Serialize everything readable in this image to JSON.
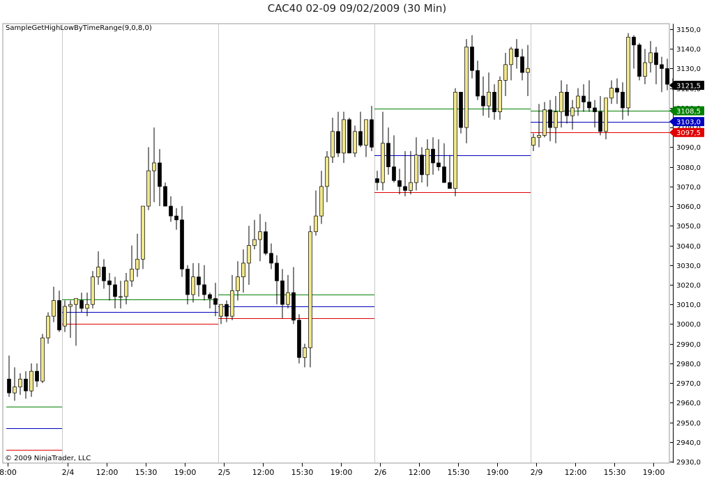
{
  "chart_data": {
    "type": "candlestick",
    "title": "CAC40 02-09  09/02/2009 (30 Min)",
    "indicator_label": "SampleGetHighLowByTimeRange(9,0,8,0)",
    "copyright": "© 2009 NinjaTrader, LLC",
    "ylim": [
      2930,
      3150
    ],
    "y_ticks": [
      "2930,0",
      "2940,0",
      "2950,0",
      "2960,0",
      "2970,0",
      "2980,0",
      "2990,0",
      "3000,0",
      "3010,0",
      "3020,0",
      "3030,0",
      "3040,0",
      "3050,0",
      "3060,0",
      "3070,0",
      "3080,0",
      "3090,0",
      "3100,0",
      "3110,0",
      "3120,0",
      "3130,0",
      "3140,0",
      "3150,0"
    ],
    "x_ticks": [
      {
        "bar": -0.2,
        "label": "8:00"
      },
      {
        "bar": 10.5,
        "label": "2/4"
      },
      {
        "bar": 17.5,
        "label": "12:00"
      },
      {
        "bar": 24.5,
        "label": "15:30"
      },
      {
        "bar": 31.5,
        "label": "19:00"
      },
      {
        "bar": 38.5,
        "label": "2/5"
      },
      {
        "bar": 45.5,
        "label": "12:00"
      },
      {
        "bar": 52.5,
        "label": "15:30"
      },
      {
        "bar": 59.5,
        "label": "19:00"
      },
      {
        "bar": 66.5,
        "label": "2/6"
      },
      {
        "bar": 73.5,
        "label": "12:00"
      },
      {
        "bar": 80.5,
        "label": "15:30"
      },
      {
        "bar": 87.5,
        "label": "19:00"
      },
      {
        "bar": 94.5,
        "label": "2/9"
      },
      {
        "bar": 101.5,
        "label": "12:00"
      },
      {
        "bar": 108.5,
        "label": "15:30"
      },
      {
        "bar": 115.5,
        "label": "19:00"
      }
    ],
    "session_separators": [
      10,
      38,
      66,
      94
    ],
    "price_markers": [
      {
        "label": "3121,5",
        "value": 3121.5,
        "color": "#000000"
      },
      {
        "label": "3108,5",
        "value": 3108.5,
        "color": "#008000"
      },
      {
        "label": "3103,0",
        "value": 3103.0,
        "color": "#0000c0"
      },
      {
        "label": "3097,5",
        "value": 3097.5,
        "color": "#e00000"
      }
    ],
    "range_lines": [
      {
        "from": 0,
        "to": 9,
        "high": 2958,
        "mid": 2947,
        "low": 2936
      },
      {
        "from": 10,
        "to": 37,
        "high": 3012.5,
        "mid": 3006,
        "low": 3000
      },
      {
        "from": 38,
        "to": 65,
        "high": 3015,
        "mid": 3009,
        "low": 3003
      },
      {
        "from": 66,
        "to": 93,
        "high": 3109.5,
        "mid": 3086,
        "low": 3067
      },
      {
        "from": 94,
        "to": 118,
        "high": 3108.5,
        "mid": 3103,
        "low": 3097.5
      }
    ],
    "colors": {
      "up_body": "#f0e68c",
      "down_body": "#000000",
      "wick": "#000000",
      "grid": "#c8c8c8"
    },
    "bars": [
      [
        2972,
        2984,
        2963,
        2965
      ],
      [
        2965,
        2978,
        2961,
        2968
      ],
      [
        2968,
        2975,
        2964,
        2972
      ],
      [
        2972,
        2976,
        2962,
        2966
      ],
      [
        2966,
        2980,
        2963,
        2976
      ],
      [
        2976,
        2980,
        2968,
        2971
      ],
      [
        2971,
        2995,
        2970,
        2993
      ],
      [
        2993,
        3006,
        2990,
        3004
      ],
      [
        3004,
        3019,
        3001,
        3012
      ],
      [
        3012,
        3017,
        2996,
        2997
      ],
      [
        2999,
        3012,
        2996,
        3009
      ],
      [
        3009,
        3012,
        2993,
        3010
      ],
      [
        3010,
        3013,
        2989,
        3013
      ],
      [
        3012,
        3016,
        3006,
        3008
      ],
      [
        3008,
        3016,
        3004,
        3010
      ],
      [
        3010,
        3027,
        3008,
        3024
      ],
      [
        3024,
        3037,
        3020,
        3029
      ],
      [
        3029,
        3033,
        3018,
        3022
      ],
      [
        3022,
        3026,
        3012,
        3020
      ],
      [
        3020,
        3024,
        3008,
        3014
      ],
      [
        3014,
        3022,
        3008,
        3014
      ],
      [
        3014,
        3026,
        3010,
        3022
      ],
      [
        3022,
        3040,
        3019,
        3028
      ],
      [
        3028,
        3046,
        3024,
        3033
      ],
      [
        3033,
        3059,
        3028,
        3060
      ],
      [
        3060,
        3090,
        3058,
        3078
      ],
      [
        3078,
        3100,
        3062,
        3082
      ],
      [
        3082,
        3089,
        3060,
        3070
      ],
      [
        3070,
        3072,
        3060,
        3060
      ],
      [
        3060,
        3065,
        3052,
        3055
      ],
      [
        3055,
        3059,
        3048,
        3053
      ],
      [
        3053,
        3060,
        3024,
        3028
      ],
      [
        3028,
        3030,
        3010,
        3015
      ],
      [
        3015,
        3031,
        3011,
        3024
      ],
      [
        3024,
        3031,
        3014,
        3020
      ],
      [
        3020,
        3030,
        3012,
        3015
      ],
      [
        3015,
        3016,
        3008,
        3013
      ],
      [
        3013,
        3021,
        3004,
        3010
      ],
      [
        3004,
        3010,
        3000,
        3010
      ],
      [
        3010,
        3012,
        3001,
        3004
      ],
      [
        3004,
        3025,
        3002,
        3017
      ],
      [
        3017,
        3032,
        3012,
        3024
      ],
      [
        3024,
        3038,
        3016,
        3031
      ],
      [
        3031,
        3050,
        3020,
        3040
      ],
      [
        3040,
        3053,
        3038,
        3043
      ],
      [
        3043,
        3056,
        3032,
        3047
      ],
      [
        3047,
        3052,
        3035,
        3036
      ],
      [
        3036,
        3041,
        3028,
        3031
      ],
      [
        3031,
        3035,
        3010,
        3022
      ],
      [
        3022,
        3028,
        3003,
        3010
      ],
      [
        3010,
        3025,
        3008,
        3016
      ],
      [
        3016,
        3029,
        3000,
        3002
      ],
      [
        3002,
        3005,
        2980,
        2983
      ],
      [
        2983,
        2990,
        2978,
        2988
      ],
      [
        2988,
        3050,
        2978,
        3047
      ],
      [
        3047,
        3068,
        3045,
        3055
      ],
      [
        3055,
        3078,
        3051,
        3070
      ],
      [
        3070,
        3088,
        3062,
        3085
      ],
      [
        3085,
        3105,
        3082,
        3098
      ],
      [
        3098,
        3108,
        3085,
        3087
      ],
      [
        3087,
        3108,
        3082,
        3104
      ],
      [
        3104,
        3105,
        3090,
        3087
      ],
      [
        3087,
        3101,
        3085,
        3098
      ],
      [
        3098,
        3108,
        3090,
        3091
      ],
      [
        3091,
        3100,
        3085,
        3104
      ],
      [
        3104,
        3111,
        3088,
        3090
      ],
      [
        3074,
        3078,
        3068,
        3072
      ],
      [
        3072,
        3108,
        3068,
        3092
      ],
      [
        3092,
        3100,
        3076,
        3080
      ],
      [
        3080,
        3096,
        3072,
        3073
      ],
      [
        3073,
        3079,
        3066,
        3070
      ],
      [
        3070,
        3088,
        3065,
        3068
      ],
      [
        3068,
        3088,
        3066,
        3072
      ],
      [
        3072,
        3095,
        3068,
        3086
      ],
      [
        3086,
        3090,
        3072,
        3076
      ],
      [
        3076,
        3094,
        3070,
        3089
      ],
      [
        3089,
        3095,
        3076,
        3082
      ],
      [
        3082,
        3094,
        3078,
        3080
      ],
      [
        3080,
        3092,
        3074,
        3072
      ],
      [
        3072,
        3086,
        3069,
        3069
      ],
      [
        3069,
        3120,
        3065,
        3118
      ],
      [
        3118,
        3118,
        3097,
        3100
      ],
      [
        3100,
        3145,
        3092,
        3141
      ],
      [
        3141,
        3147,
        3125,
        3129
      ],
      [
        3129,
        3134,
        3114,
        3116
      ],
      [
        3116,
        3126,
        3106,
        3111
      ],
      [
        3111,
        3128,
        3105,
        3118
      ],
      [
        3118,
        3122,
        3104,
        3108
      ],
      [
        3108,
        3126,
        3104,
        3124
      ],
      [
        3124,
        3138,
        3116,
        3132
      ],
      [
        3132,
        3141,
        3124,
        3140
      ],
      [
        3140,
        3145,
        3130,
        3136
      ],
      [
        3136,
        3140,
        3124,
        3128
      ],
      [
        3128,
        3142,
        3116,
        3130
      ],
      [
        3091,
        3097,
        3088,
        3095
      ],
      [
        3095,
        3112,
        3090,
        3096
      ],
      [
        3096,
        3113,
        3095,
        3109
      ],
      [
        3109,
        3114,
        3093,
        3100
      ],
      [
        3100,
        3116,
        3092,
        3108
      ],
      [
        3108,
        3124,
        3100,
        3118
      ],
      [
        3118,
        3122,
        3102,
        3106
      ],
      [
        3106,
        3114,
        3099,
        3110
      ],
      [
        3110,
        3120,
        3106,
        3116
      ],
      [
        3116,
        3122,
        3108,
        3113
      ],
      [
        3113,
        3124,
        3108,
        3110
      ],
      [
        3110,
        3114,
        3100,
        3108
      ],
      [
        3108,
        3116,
        3096,
        3098
      ],
      [
        3098,
        3112,
        3094,
        3115
      ],
      [
        3115,
        3124,
        3112,
        3120
      ],
      [
        3120,
        3125,
        3112,
        3118
      ],
      [
        3118,
        3123,
        3104,
        3110
      ],
      [
        3110,
        3148,
        3106,
        3146
      ],
      [
        3146,
        3147,
        3130,
        3142
      ],
      [
        3142,
        3143,
        3124,
        3126
      ],
      [
        3126,
        3140,
        3122,
        3133
      ],
      [
        3133,
        3144,
        3128,
        3138
      ],
      [
        3138,
        3141,
        3122,
        3132
      ],
      [
        3132,
        3136,
        3118,
        3130
      ],
      [
        3130,
        3135,
        3119,
        3122
      ],
      [
        3122,
        3125,
        3119,
        3121.5
      ]
    ]
  }
}
